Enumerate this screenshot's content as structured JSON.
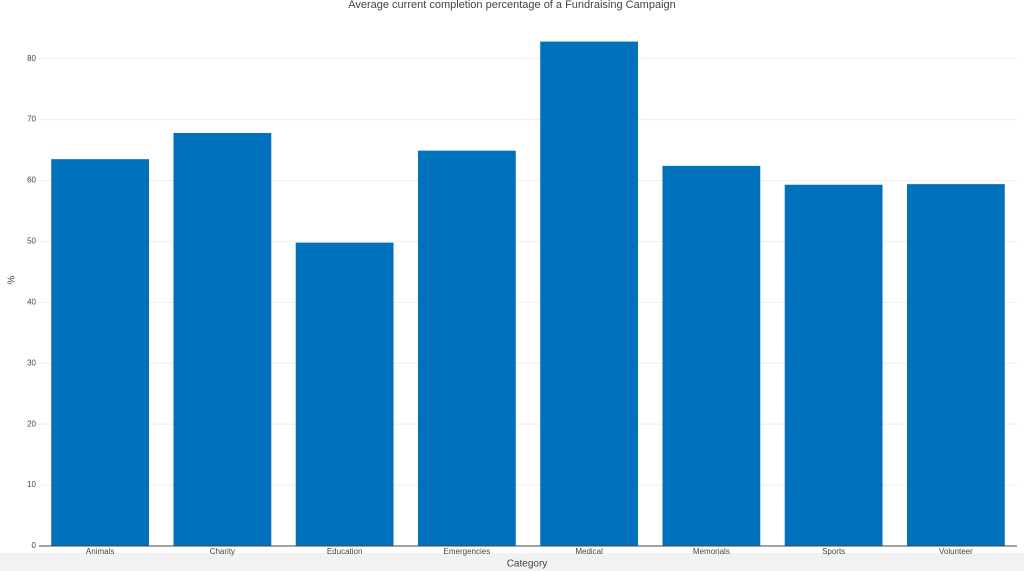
{
  "chart_data": {
    "type": "bar",
    "title": "Average current completion percentage of a Fundraising Campaign",
    "x_label": "Category",
    "y_label": "%",
    "categories": [
      "Animals",
      "Charity",
      "Education",
      "Emergencies",
      "Medical",
      "Memorials",
      "Sports",
      "Volunteer"
    ],
    "values": [
      63.5,
      67.8,
      49.8,
      64.9,
      82.8,
      62.4,
      59.3,
      59.4
    ],
    "color": "#0072bc",
    "ylim": [
      0,
      87
    ],
    "yticks": [
      0,
      10,
      20,
      30,
      40,
      50,
      60,
      70,
      80
    ],
    "grid": true
  }
}
